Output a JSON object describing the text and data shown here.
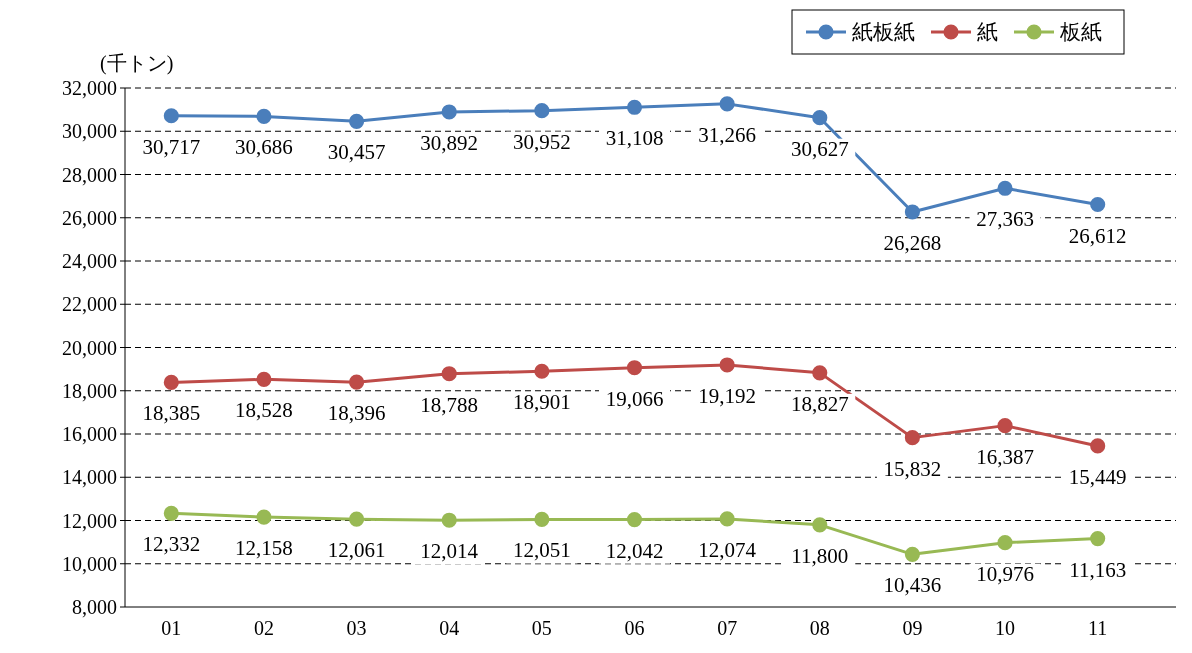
{
  "chart_data": {
    "type": "line",
    "ylabel": "(千トン)",
    "categories": [
      "01",
      "02",
      "03",
      "04",
      "05",
      "06",
      "07",
      "08",
      "09",
      "10",
      "11"
    ],
    "series": [
      {
        "name": "紙板紙",
        "color": "#4a7ebb",
        "values": [
          30717,
          30686,
          30457,
          30892,
          30952,
          31108,
          31266,
          30627,
          26268,
          27363,
          26612
        ],
        "value_labels": [
          "30,717",
          "30,686",
          "30,457",
          "30,892",
          "30,952",
          "31,108",
          "31,266",
          "30,627",
          "26,268",
          "27,363",
          "26,612"
        ]
      },
      {
        "name": "紙",
        "color": "#be4b48",
        "values": [
          18385,
          18528,
          18396,
          18788,
          18901,
          19066,
          19192,
          18827,
          15832,
          16387,
          15449
        ],
        "value_labels": [
          "18,385",
          "18,528",
          "18,396",
          "18,788",
          "18,901",
          "19,066",
          "19,192",
          "18,827",
          "15,832",
          "16,387",
          "15,449"
        ]
      },
      {
        "name": "板紙",
        "color": "#98b954",
        "values": [
          12332,
          12158,
          12061,
          12014,
          12051,
          12042,
          12074,
          11800,
          10436,
          10976,
          11163
        ],
        "value_labels": [
          "12,332",
          "12,158",
          "12,061",
          "12,014",
          "12,051",
          "12,042",
          "12,074",
          "11,800",
          "10,436",
          "10,976",
          "11,163"
        ]
      }
    ],
    "ylim": [
      8000,
      32000
    ],
    "yticks": [
      {
        "value": 8000,
        "label": "8,000"
      },
      {
        "value": 10000,
        "label": "10,000"
      },
      {
        "value": 12000,
        "label": "12,000"
      },
      {
        "value": 14000,
        "label": "14,000"
      },
      {
        "value": 16000,
        "label": "16,000"
      },
      {
        "value": 18000,
        "label": "18,000"
      },
      {
        "value": 20000,
        "label": "20,000"
      },
      {
        "value": 22000,
        "label": "22,000"
      },
      {
        "value": 24000,
        "label": "24,000"
      },
      {
        "value": 26000,
        "label": "26,000"
      },
      {
        "value": 28000,
        "label": "28,000"
      },
      {
        "value": 30000,
        "label": "30,000"
      },
      {
        "value": 32000,
        "label": "32,000"
      }
    ],
    "grid": "y",
    "legend": "top right",
    "marker": "circle",
    "line_style": "solid"
  }
}
